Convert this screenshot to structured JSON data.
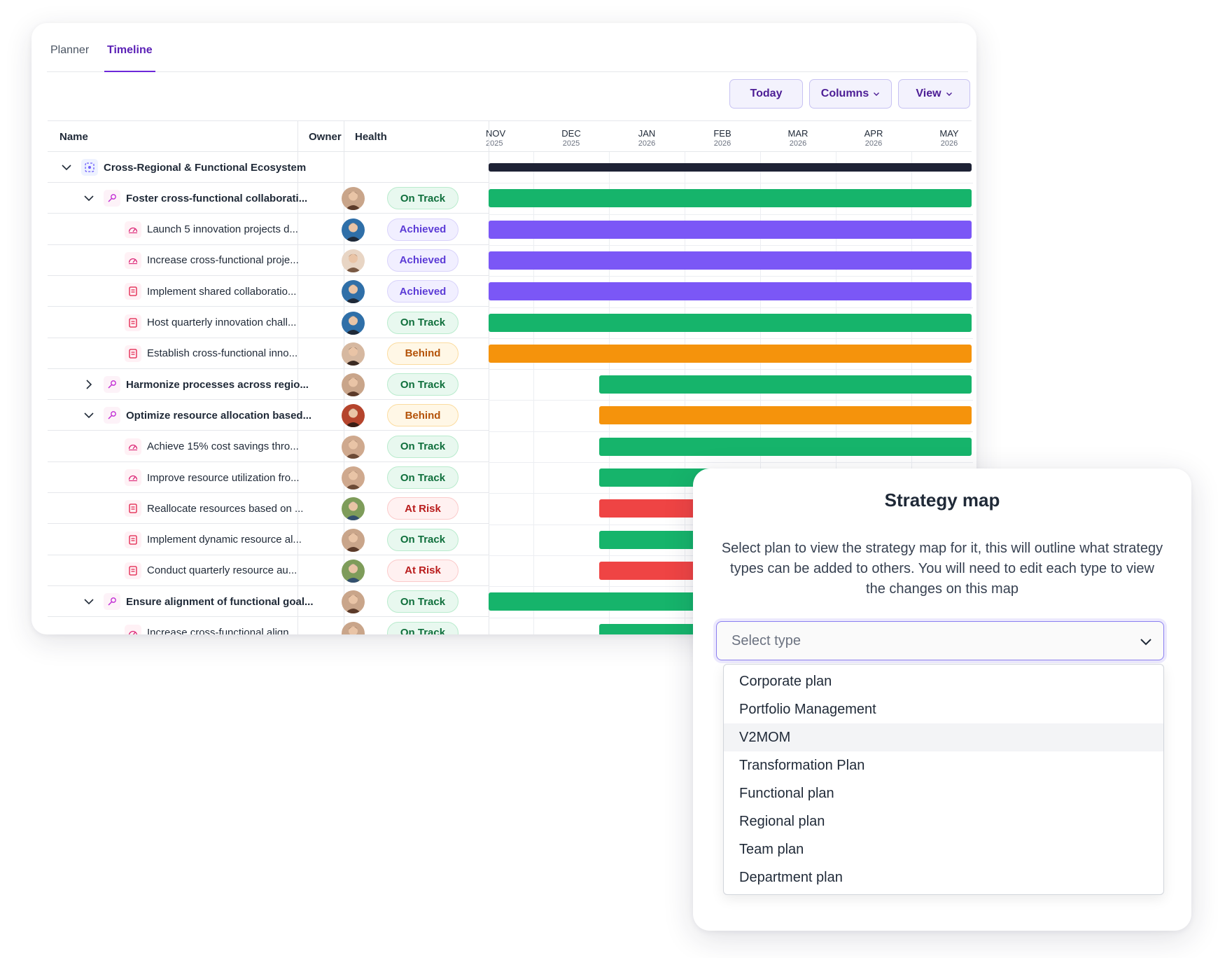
{
  "tabs": [
    {
      "label": "Planner",
      "active": false
    },
    {
      "label": "Timeline",
      "active": true
    }
  ],
  "toolbar": {
    "today": "Today",
    "columns": "Columns",
    "view": "View"
  },
  "columns": {
    "name": "Name",
    "owner": "Owner",
    "health": "Health"
  },
  "months": [
    {
      "month": "NOV",
      "year": "2025"
    },
    {
      "month": "DEC",
      "year": "2025"
    },
    {
      "month": "JAN",
      "year": "2026"
    },
    {
      "month": "FEB",
      "year": "2026"
    },
    {
      "month": "MAR",
      "year": "2026"
    },
    {
      "month": "APR",
      "year": "2026"
    },
    {
      "month": "MAY",
      "year": "2026"
    }
  ],
  "rows": [
    {
      "name": "Cross-Regional & Functional Ecosystem",
      "level": 0,
      "type": "ecosystem",
      "caret": "down",
      "health": "",
      "bar": "dark",
      "bar_start": "NOV"
    },
    {
      "name": "Foster cross-functional collaborati...",
      "level": 1,
      "type": "objective",
      "caret": "down",
      "health": "On Track",
      "bar": "ontrack",
      "bar_start": "NOV"
    },
    {
      "name": "Launch 5 innovation projects d...",
      "level": 2,
      "type": "key-result",
      "caret": "",
      "health": "Achieved",
      "bar": "achieved",
      "bar_start": "NOV"
    },
    {
      "name": "Increase cross-functional proje...",
      "level": 2,
      "type": "key-result",
      "caret": "",
      "health": "Achieved",
      "bar": "achieved",
      "bar_start": "NOV"
    },
    {
      "name": "Implement shared collaboratio...",
      "level": 2,
      "type": "initiative",
      "caret": "",
      "health": "Achieved",
      "bar": "achieved",
      "bar_start": "NOV"
    },
    {
      "name": "Host quarterly innovation chall...",
      "level": 2,
      "type": "initiative",
      "caret": "",
      "health": "On Track",
      "bar": "ontrack",
      "bar_start": "NOV"
    },
    {
      "name": "Establish cross-functional inno...",
      "level": 2,
      "type": "initiative",
      "caret": "",
      "health": "Behind",
      "bar": "behind",
      "bar_start": "NOV"
    },
    {
      "name": "Harmonize processes across regio...",
      "level": 1,
      "type": "objective",
      "caret": "right",
      "health": "On Track",
      "bar": "ontrack",
      "bar_start": "JAN"
    },
    {
      "name": "Optimize resource allocation based...",
      "level": 1,
      "type": "objective",
      "caret": "down",
      "health": "Behind",
      "bar": "behind",
      "bar_start": "JAN"
    },
    {
      "name": "Achieve 15% cost savings thro...",
      "level": 2,
      "type": "key-result",
      "caret": "",
      "health": "On Track",
      "bar": "ontrack",
      "bar_start": "JAN"
    },
    {
      "name": "Improve resource utilization fro...",
      "level": 2,
      "type": "key-result",
      "caret": "",
      "health": "On Track",
      "bar": "ontrack",
      "bar_start": "JAN"
    },
    {
      "name": "Reallocate resources based on ...",
      "level": 2,
      "type": "initiative",
      "caret": "",
      "health": "At Risk",
      "bar": "atrisk",
      "bar_start": "JAN"
    },
    {
      "name": "Implement dynamic resource al...",
      "level": 2,
      "type": "initiative",
      "caret": "",
      "health": "On Track",
      "bar": "ontrack",
      "bar_start": "JAN"
    },
    {
      "name": "Conduct quarterly resource au...",
      "level": 2,
      "type": "initiative",
      "caret": "",
      "health": "At Risk",
      "bar": "atrisk",
      "bar_start": "JAN"
    },
    {
      "name": "Ensure alignment of functional goal...",
      "level": 1,
      "type": "objective",
      "caret": "down",
      "health": "On Track",
      "bar": "ontrack",
      "bar_start": "NOV"
    },
    {
      "name": "Increase cross-functional align...",
      "level": 2,
      "type": "key-result",
      "caret": "",
      "health": "On Track",
      "bar": "ontrack",
      "bar_start": "JAN"
    }
  ],
  "strategy_map": {
    "title": "Strategy map",
    "description": "Select plan to view the strategy map for it, this will outline what strategy types can be added to others. You will need to edit each type to view the changes on this map",
    "select_placeholder": "Select type",
    "options": [
      "Corporate plan",
      "Portfolio Management",
      "V2MOM",
      "Transformation Plan",
      "Functional plan",
      "Regional plan",
      "Team plan",
      "Department plan"
    ],
    "highlighted_option": "V2MOM"
  },
  "colors": {
    "accent": "#6d28d9",
    "on_track": "#16b46b",
    "achieved": "#7b57f6",
    "behind": "#f5930c",
    "at_risk": "#ef4444",
    "ecosystem_bar": "#1e2235"
  }
}
